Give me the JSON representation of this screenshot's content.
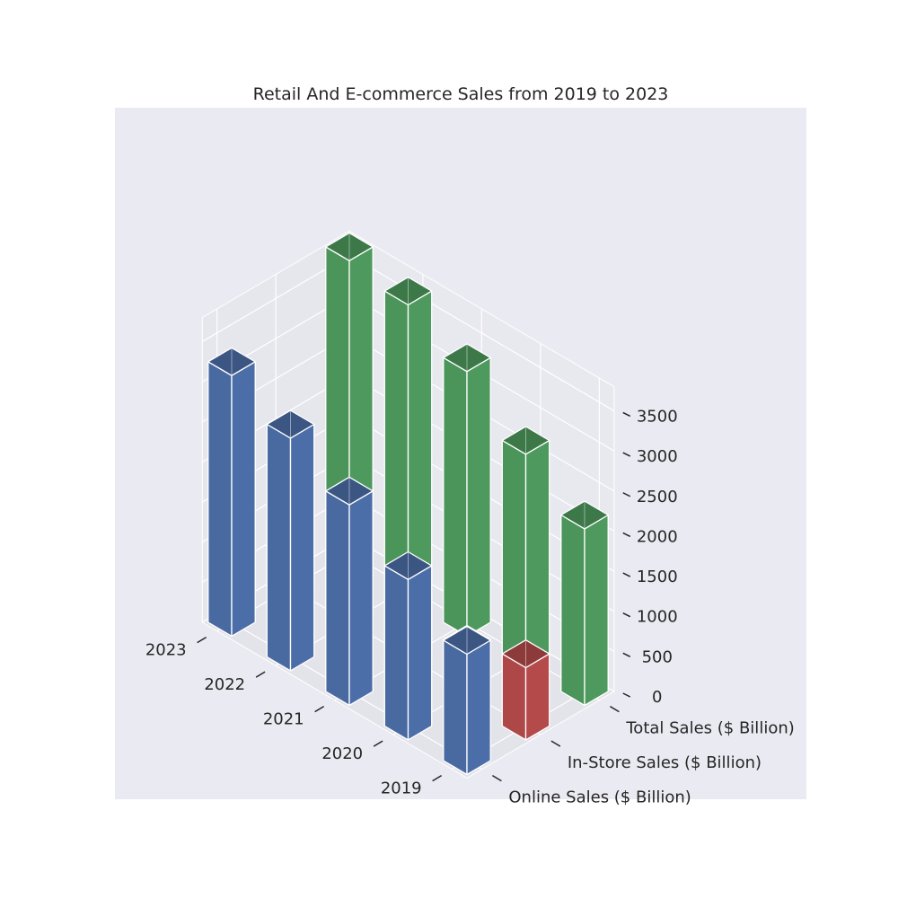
{
  "chart_data": {
    "type": "bar",
    "title": "Retail And E-commerce Sales from 2019 to 2023",
    "categories": [
      "2019",
      "2020",
      "2021",
      "2022",
      "2023"
    ],
    "series": [
      {
        "name": "Online Sales ($ Billion)",
        "values": [
          1500,
          2000,
          2500,
          2900,
          3250
        ],
        "color": "#4c6ea8"
      },
      {
        "name": "In-Store Sales ($ Billion)",
        "values": [
          900,
          650,
          800,
          850,
          850
        ],
        "color": "#b54a4b"
      },
      {
        "name": "Total Sales ($ Billion)",
        "values": [
          2200,
          2700,
          3300,
          3700,
          3820
        ],
        "color": "#4e9a5e"
      }
    ],
    "z_ticks": [
      "0",
      "500",
      "1000",
      "1500",
      "2000",
      "2500",
      "3000",
      "3500"
    ],
    "zlim": [
      0,
      3800
    ],
    "grid": true,
    "background": "#eaeaf2"
  }
}
